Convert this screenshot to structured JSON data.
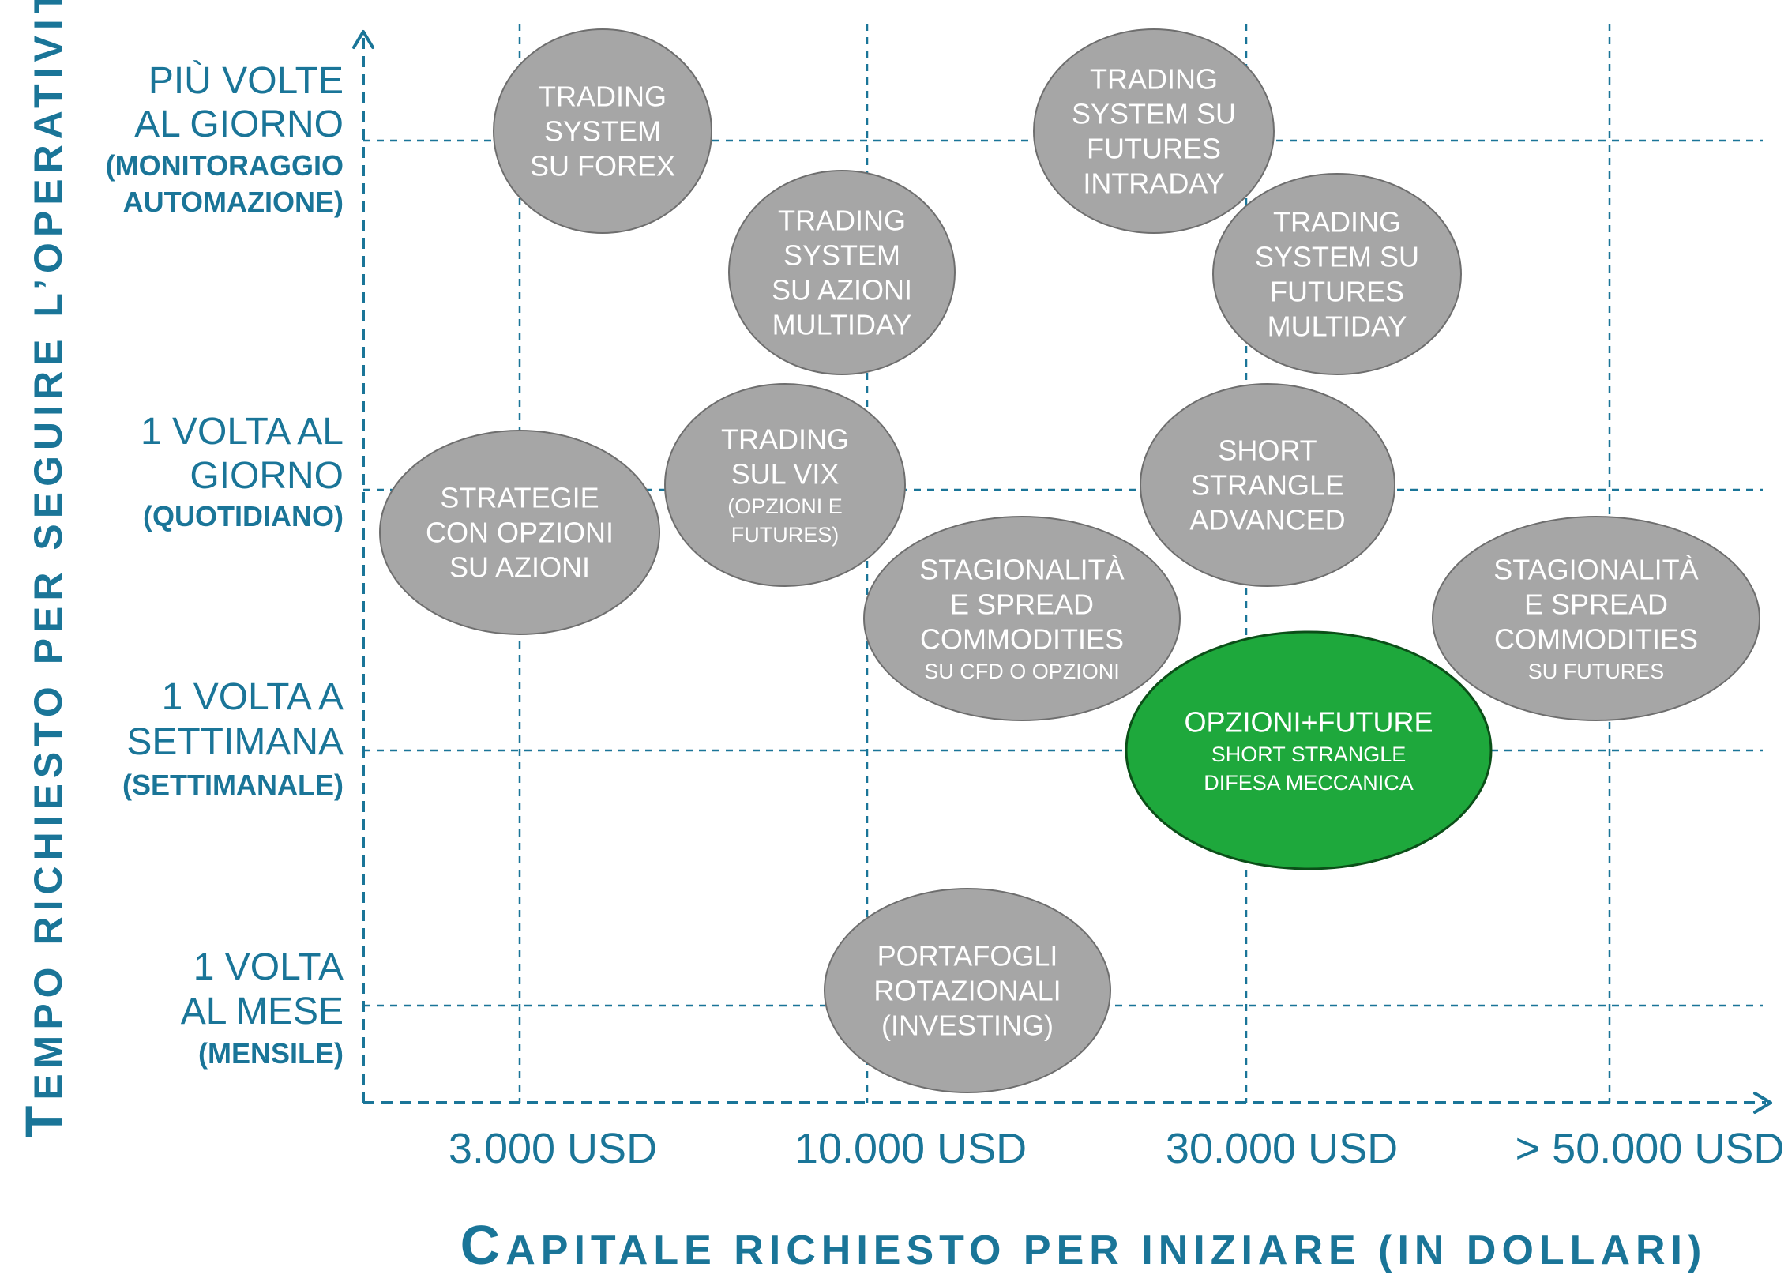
{
  "y_axis": {
    "title_initial": "T",
    "title_rest": "EMPO RICHIESTO PER SEGUIRE  L’OPERATIVITÀ",
    "levels": [
      {
        "line1": "PIÙ VOLTE",
        "line2": "AL GIORNO",
        "sub1": "(MONITORAGGIO",
        "sub2": "AUTOMAZIONE)"
      },
      {
        "line1": "1 VOLTA AL",
        "line2": "GIORNO",
        "sub1": "(QUOTIDIANO)"
      },
      {
        "line1": "1 VOLTA A",
        "line2": "SETTIMANA",
        "sub1": "(SETTIMANALE)"
      },
      {
        "line1": "1 VOLTA",
        "line2": "AL MESE",
        "sub1": "(MENSILE)"
      }
    ]
  },
  "x_axis": {
    "title_initial": "C",
    "title_rest": "APITALE RICHIESTO PER INIZIARE (IN DOLLARI)",
    "levels": [
      "3.000 USD",
      "10.000 USD",
      "30.000 USD",
      "> 50.000 USD"
    ]
  },
  "bubbles": [
    {
      "id": "trading-system-forex",
      "color": "#a6a6a6",
      "lines": [
        "TRADING",
        "SYSTEM",
        "SU FOREX"
      ],
      "small": []
    },
    {
      "id": "trading-system-futures-intraday",
      "color": "#a6a6a6",
      "lines": [
        "TRADING",
        "SYSTEM SU",
        "FUTURES",
        "INTRADAY"
      ],
      "small": []
    },
    {
      "id": "trading-system-azioni-multiday",
      "color": "#a6a6a6",
      "lines": [
        "TRADING",
        "SYSTEM",
        "SU AZIONI",
        "MULTIDAY"
      ],
      "small": []
    },
    {
      "id": "trading-system-futures-multiday",
      "color": "#a6a6a6",
      "lines": [
        "TRADING",
        "SYSTEM SU",
        "FUTURES",
        "MULTIDAY"
      ],
      "small": []
    },
    {
      "id": "strategie-opzioni-azioni",
      "color": "#a6a6a6",
      "lines": [
        "STRATEGIE",
        "CON OPZIONI",
        "SU AZIONI"
      ],
      "small": []
    },
    {
      "id": "trading-vix",
      "color": "#a6a6a6",
      "lines": [
        "TRADING",
        "SUL VIX"
      ],
      "small": [
        "(OPZIONI E",
        "FUTURES)"
      ]
    },
    {
      "id": "short-strangle-advanced",
      "color": "#a6a6a6",
      "lines": [
        "SHORT",
        "STRANGLE",
        "ADVANCED"
      ],
      "small": []
    },
    {
      "id": "stagionalita-cfd",
      "color": "#a6a6a6",
      "lines": [
        "STAGIONALITÀ",
        "E SPREAD",
        "COMMODITIES"
      ],
      "small": [
        "SU CFD O OPZIONI"
      ]
    },
    {
      "id": "stagionalita-futures",
      "color": "#a6a6a6",
      "lines": [
        "STAGIONALITÀ",
        "E SPREAD",
        "COMMODITIES"
      ],
      "small": [
        "SU FUTURES"
      ]
    },
    {
      "id": "opzioni-future",
      "color": "#1ea83c",
      "lines": [
        "OPZIONI+FUTURE"
      ],
      "small": [
        "SHORT STRANGLE",
        "DIFESA MECCANICA"
      ]
    },
    {
      "id": "portafogli-rotazionali",
      "color": "#a6a6a6",
      "lines": [
        "PORTAFOGLI",
        "ROTAZIONALI",
        "(INVESTING)"
      ],
      "small": []
    }
  ]
}
